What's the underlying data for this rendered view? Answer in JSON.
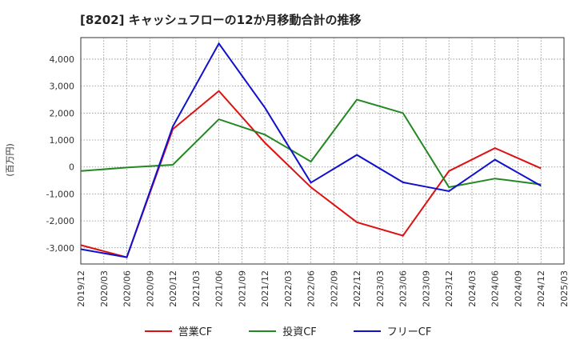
{
  "chart_data": {
    "type": "line",
    "title": "[8202]  キャッシュフローの12か月移動合計の推移",
    "ylabel": "(百万円)",
    "xlabel": "",
    "ylim": [
      -3600,
      4800
    ],
    "yticks": [
      -3000,
      -2000,
      -1000,
      0,
      1000,
      2000,
      3000,
      4000
    ],
    "ytick_labels": [
      "-3,000",
      "-2,000",
      "-1,000",
      "0",
      "1,000",
      "2,000",
      "3,000",
      "4,000"
    ],
    "categories": [
      "2019/12",
      "2020/03",
      "2020/06",
      "2020/09",
      "2020/12",
      "2021/03",
      "2021/06",
      "2021/09",
      "2021/12",
      "2022/03",
      "2022/06",
      "2022/09",
      "2022/12",
      "2023/03",
      "2023/06",
      "2023/09",
      "2023/12",
      "2024/03",
      "2024/06",
      "2024/09",
      "2024/12",
      "2025/03"
    ],
    "grid": true,
    "legend_position": "bottom",
    "series": [
      {
        "name": "営業CF",
        "color": "#dd1111",
        "points": [
          [
            "2019/12",
            -2900
          ],
          [
            "2020/06",
            -3350
          ],
          [
            "2020/12",
            1400
          ],
          [
            "2021/06",
            2820
          ],
          [
            "2021/12",
            900
          ],
          [
            "2022/06",
            -750
          ],
          [
            "2022/12",
            -2050
          ],
          [
            "2023/06",
            -2550
          ],
          [
            "2023/12",
            -150
          ],
          [
            "2024/06",
            700
          ],
          [
            "2024/12",
            -50
          ]
        ]
      },
      {
        "name": "投資CF",
        "color": "#228822",
        "points": [
          [
            "2019/12",
            -150
          ],
          [
            "2020/06",
            -20
          ],
          [
            "2020/12",
            80
          ],
          [
            "2021/06",
            1770
          ],
          [
            "2021/12",
            1200
          ],
          [
            "2022/06",
            200
          ],
          [
            "2022/12",
            2500
          ],
          [
            "2023/06",
            2000
          ],
          [
            "2023/12",
            -750
          ],
          [
            "2024/06",
            -430
          ],
          [
            "2024/12",
            -650
          ]
        ]
      },
      {
        "name": "フリーCF",
        "color": "#1111cc",
        "points": [
          [
            "2019/12",
            -3050
          ],
          [
            "2020/06",
            -3350
          ],
          [
            "2020/12",
            1500
          ],
          [
            "2021/06",
            4580
          ],
          [
            "2021/12",
            2200
          ],
          [
            "2022/06",
            -580
          ],
          [
            "2022/12",
            450
          ],
          [
            "2023/06",
            -570
          ],
          [
            "2023/12",
            -900
          ],
          [
            "2024/06",
            270
          ],
          [
            "2024/12",
            -700
          ]
        ]
      }
    ]
  }
}
